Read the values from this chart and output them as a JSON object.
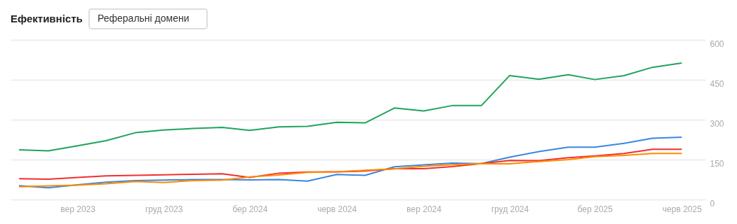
{
  "chart_data": {
    "type": "line",
    "title": "Ефективність",
    "subtitle": "Реферальні домени",
    "x": [
      "2023-07",
      "2023-08",
      "2023-09",
      "2023-10",
      "2023-11",
      "2023-12",
      "2024-01",
      "2024-02",
      "2024-03",
      "2024-04",
      "2024-05",
      "2024-06",
      "2024-07",
      "2024-08",
      "2024-09",
      "2024-10",
      "2024-11",
      "2024-12",
      "2025-01",
      "2025-02",
      "2025-03",
      "2025-04",
      "2025-05",
      "2025-06"
    ],
    "series": [
      {
        "color": "#1fa35b",
        "values": [
          187,
          183,
          202,
          221,
          251,
          261,
          267,
          271,
          260,
          273,
          275,
          290,
          288,
          344,
          333,
          353,
          353,
          466,
          452,
          469,
          451,
          466,
          497,
          513
        ]
      },
      {
        "color": "#3a86e0",
        "values": [
          52,
          44,
          55,
          65,
          71,
          73,
          75,
          75,
          74,
          75,
          69,
          94,
          91,
          123,
          130,
          137,
          135,
          159,
          180,
          197,
          197,
          211,
          230,
          234
        ]
      },
      {
        "color": "#f0302e",
        "values": [
          78,
          76,
          83,
          89,
          91,
          93,
          95,
          97,
          83,
          99,
          103,
          104,
          107,
          116,
          116,
          124,
          135,
          147,
          146,
          157,
          164,
          173,
          189,
          189
        ]
      },
      {
        "color": "#ff8a00",
        "values": [
          48,
          51,
          54,
          59,
          68,
          64,
          71,
          73,
          85,
          92,
          102,
          104,
          110,
          115,
          125,
          131,
          135,
          134,
          143,
          150,
          161,
          166,
          173,
          173
        ]
      }
    ],
    "xlim": [
      "2023-06-22",
      "2025-06-26"
    ],
    "xticks": [
      {
        "value": "2023-09",
        "label": "вер 2023"
      },
      {
        "value": "2023-12",
        "label": "груд 2023"
      },
      {
        "value": "2024-03",
        "label": "бер 2024"
      },
      {
        "value": "2024-06",
        "label": "черв 2024"
      },
      {
        "value": "2024-09",
        "label": "вер 2024"
      },
      {
        "value": "2024-12",
        "label": "груд 2024"
      },
      {
        "value": "2025-03",
        "label": "бер 2025"
      },
      {
        "value": "2025-06",
        "label": "черв 2025"
      }
    ],
    "ylim": [
      0,
      600
    ],
    "yticks": [
      0,
      150,
      300,
      450,
      600
    ],
    "grid": "y",
    "line_style": "solid"
  }
}
